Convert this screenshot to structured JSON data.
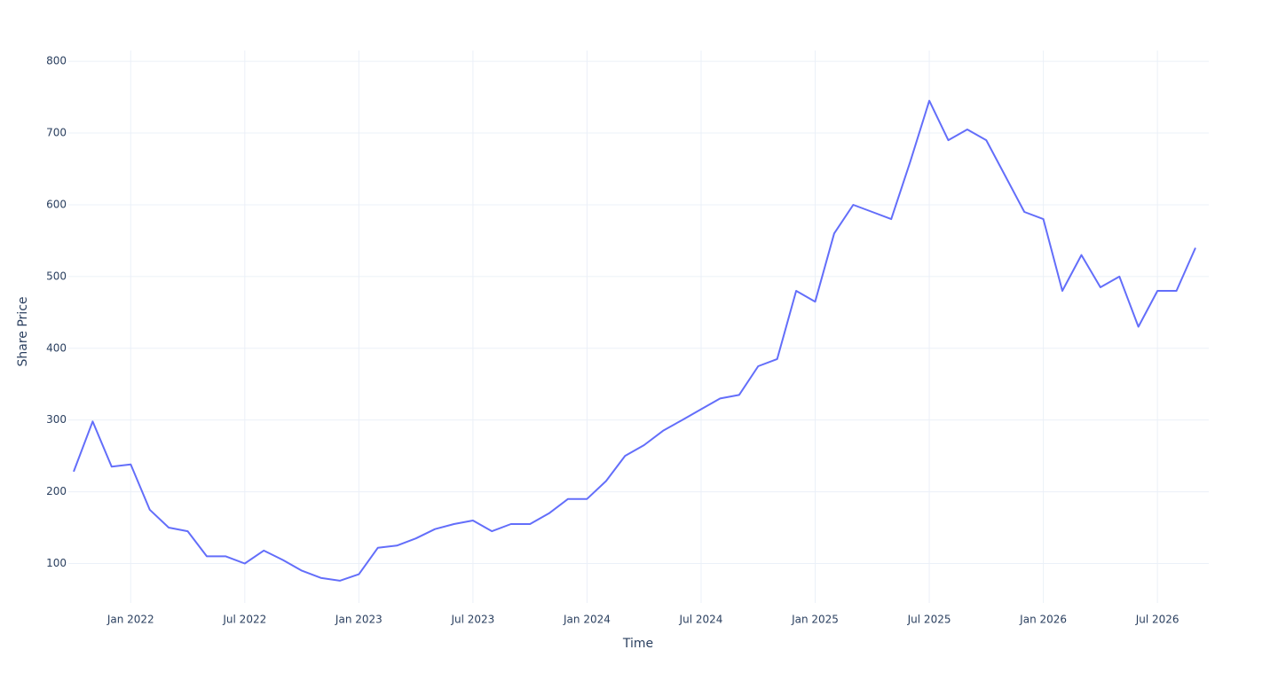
{
  "chart_data": {
    "type": "line",
    "xlabel": "Time",
    "ylabel": "Share Price",
    "x": [
      "2021-10",
      "2021-11",
      "2021-12",
      "2022-01",
      "2022-02",
      "2022-03",
      "2022-04",
      "2022-05",
      "2022-06",
      "2022-07",
      "2022-08",
      "2022-09",
      "2022-10",
      "2022-11",
      "2022-12",
      "2023-01",
      "2023-02",
      "2023-03",
      "2023-04",
      "2023-05",
      "2023-06",
      "2023-07",
      "2023-08",
      "2023-09",
      "2023-10",
      "2023-11",
      "2023-12",
      "2024-01",
      "2024-02",
      "2024-03",
      "2024-04",
      "2024-05",
      "2024-06",
      "2024-07",
      "2024-08",
      "2024-09",
      "2024-10",
      "2024-11",
      "2024-12",
      "2025-01",
      "2025-02",
      "2025-03",
      "2025-04",
      "2025-05",
      "2025-06",
      "2025-07",
      "2025-08",
      "2025-09",
      "2025-10",
      "2025-11",
      "2025-12",
      "2026-01",
      "2026-02",
      "2026-03",
      "2026-04",
      "2026-05",
      "2026-06",
      "2026-07",
      "2026-08",
      "2026-09"
    ],
    "series": [
      {
        "name": "Share Price",
        "color": "#636efa",
        "values": [
          228,
          298,
          235,
          238,
          175,
          150,
          145,
          110,
          110,
          100,
          118,
          105,
          90,
          80,
          76,
          85,
          122,
          125,
          135,
          148,
          155,
          160,
          145,
          155,
          155,
          170,
          190,
          190,
          215,
          250,
          265,
          285,
          300,
          315,
          330,
          335,
          375,
          385,
          480,
          465,
          560,
          600,
          590,
          580,
          660,
          745,
          690,
          705,
          690,
          640,
          590,
          580,
          480,
          530,
          485,
          500,
          430,
          480,
          480,
          540
        ]
      }
    ],
    "xlim": [
      "2021-10",
      "2026-09"
    ],
    "ylim": [
      45,
      815
    ],
    "xticks": [
      {
        "value": "2022-01",
        "label": "Jan 2022"
      },
      {
        "value": "2022-07",
        "label": "Jul 2022"
      },
      {
        "value": "2023-01",
        "label": "Jan 2023"
      },
      {
        "value": "2023-07",
        "label": "Jul 2023"
      },
      {
        "value": "2024-01",
        "label": "Jan 2024"
      },
      {
        "value": "2024-07",
        "label": "Jul 2024"
      },
      {
        "value": "2025-01",
        "label": "Jan 2025"
      },
      {
        "value": "2025-07",
        "label": "Jul 2025"
      },
      {
        "value": "2026-01",
        "label": "Jan 2026"
      },
      {
        "value": "2026-07",
        "label": "Jul 2026"
      }
    ],
    "yticks": [
      100,
      200,
      300,
      400,
      500,
      600,
      700,
      800
    ],
    "grid": true
  }
}
